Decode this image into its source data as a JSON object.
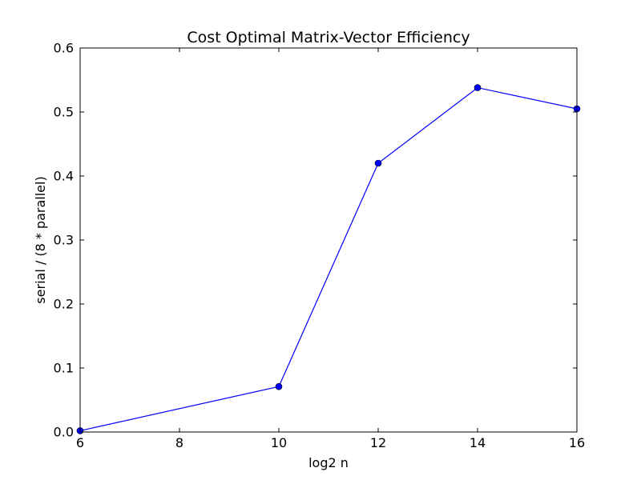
{
  "chart_data": {
    "type": "line",
    "title": "Cost Optimal Matrix-Vector Efficiency",
    "xlabel": "log2 n",
    "ylabel": "serial / (8 * parallel)",
    "xlim": [
      6,
      16
    ],
    "ylim": [
      0.0,
      0.6
    ],
    "xticks": [
      6,
      8,
      10,
      12,
      14,
      16
    ],
    "yticks": [
      0.0,
      0.1,
      0.2,
      0.3,
      0.4,
      0.5,
      0.6
    ],
    "xtick_labels": [
      "6",
      "8",
      "10",
      "12",
      "14",
      "16"
    ],
    "ytick_labels": [
      "0.0",
      "0.1",
      "0.2",
      "0.3",
      "0.4",
      "0.5",
      "0.6"
    ],
    "grid": false,
    "legend": "none",
    "series": [
      {
        "x": [
          6,
          10,
          12,
          14,
          16
        ],
        "y": [
          0.002,
          0.071,
          0.42,
          0.538,
          0.505
        ],
        "color": "#0000ff",
        "marker": "circle"
      }
    ]
  }
}
